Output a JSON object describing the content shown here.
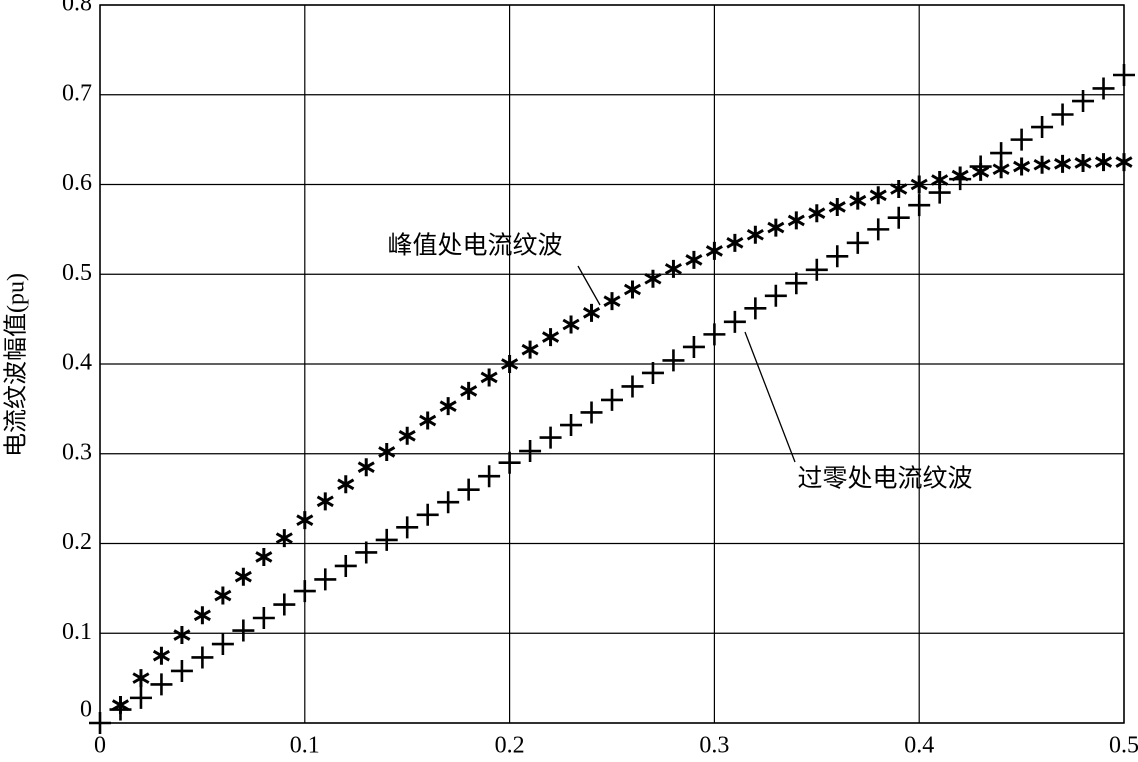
{
  "chart_data": {
    "type": "scatter",
    "y_label": "电流纹波幅值(pu)",
    "x": [
      0,
      0.01,
      0.02,
      0.03,
      0.04,
      0.05,
      0.06,
      0.07,
      0.08,
      0.09,
      0.1,
      0.11,
      0.12,
      0.13,
      0.14,
      0.15,
      0.16,
      0.17,
      0.18,
      0.19,
      0.2,
      0.21,
      0.22,
      0.23,
      0.24,
      0.25,
      0.26,
      0.27,
      0.28,
      0.29,
      0.3,
      0.31,
      0.32,
      0.33,
      0.34,
      0.35,
      0.36,
      0.37,
      0.38,
      0.39,
      0.4,
      0.41,
      0.42,
      0.43,
      0.44,
      0.45,
      0.46,
      0.47,
      0.48,
      0.49,
      0.5
    ],
    "series": [
      {
        "name": "峰值处电流纹波",
        "marker": "star",
        "color": "#000000",
        "values": [
          null,
          0.02,
          0.05,
          0.075,
          0.098,
          0.12,
          0.142,
          0.163,
          0.185,
          0.206,
          0.226,
          0.247,
          0.266,
          0.285,
          0.302,
          0.32,
          0.337,
          0.353,
          0.37,
          0.385,
          0.4,
          0.416,
          0.43,
          0.444,
          0.457,
          0.47,
          0.483,
          0.495,
          0.506,
          0.516,
          0.526,
          0.535,
          0.544,
          0.552,
          0.56,
          0.568,
          0.575,
          0.582,
          0.588,
          0.595,
          0.6,
          0.605,
          0.61,
          0.614,
          0.617,
          0.62,
          0.622,
          0.623,
          0.624,
          0.625,
          0.625
        ]
      },
      {
        "name": "过零处电流纹波",
        "marker": "plus",
        "color": "#000000",
        "values": [
          0,
          0.015,
          0.028,
          0.043,
          0.058,
          0.073,
          0.088,
          0.103,
          0.117,
          0.132,
          0.147,
          0.16,
          0.175,
          0.19,
          0.204,
          0.218,
          0.232,
          0.246,
          0.26,
          0.275,
          0.29,
          0.303,
          0.318,
          0.332,
          0.346,
          0.36,
          0.375,
          0.39,
          0.404,
          0.419,
          0.433,
          0.447,
          0.462,
          0.476,
          0.49,
          0.505,
          0.52,
          0.535,
          0.55,
          0.563,
          0.577,
          0.591,
          0.606,
          0.62,
          0.635,
          0.65,
          0.664,
          0.678,
          0.693,
          0.707,
          0.722
        ]
      }
    ],
    "xlim": [
      0,
      0.5
    ],
    "xticks": [
      0,
      0.1,
      0.2,
      0.3,
      0.4,
      0.5
    ],
    "ylim": [
      0,
      0.8
    ],
    "yticks": [
      0,
      0.1,
      0.2,
      0.3,
      0.4,
      0.5,
      0.6,
      0.7,
      0.8
    ],
    "grid": true
  }
}
